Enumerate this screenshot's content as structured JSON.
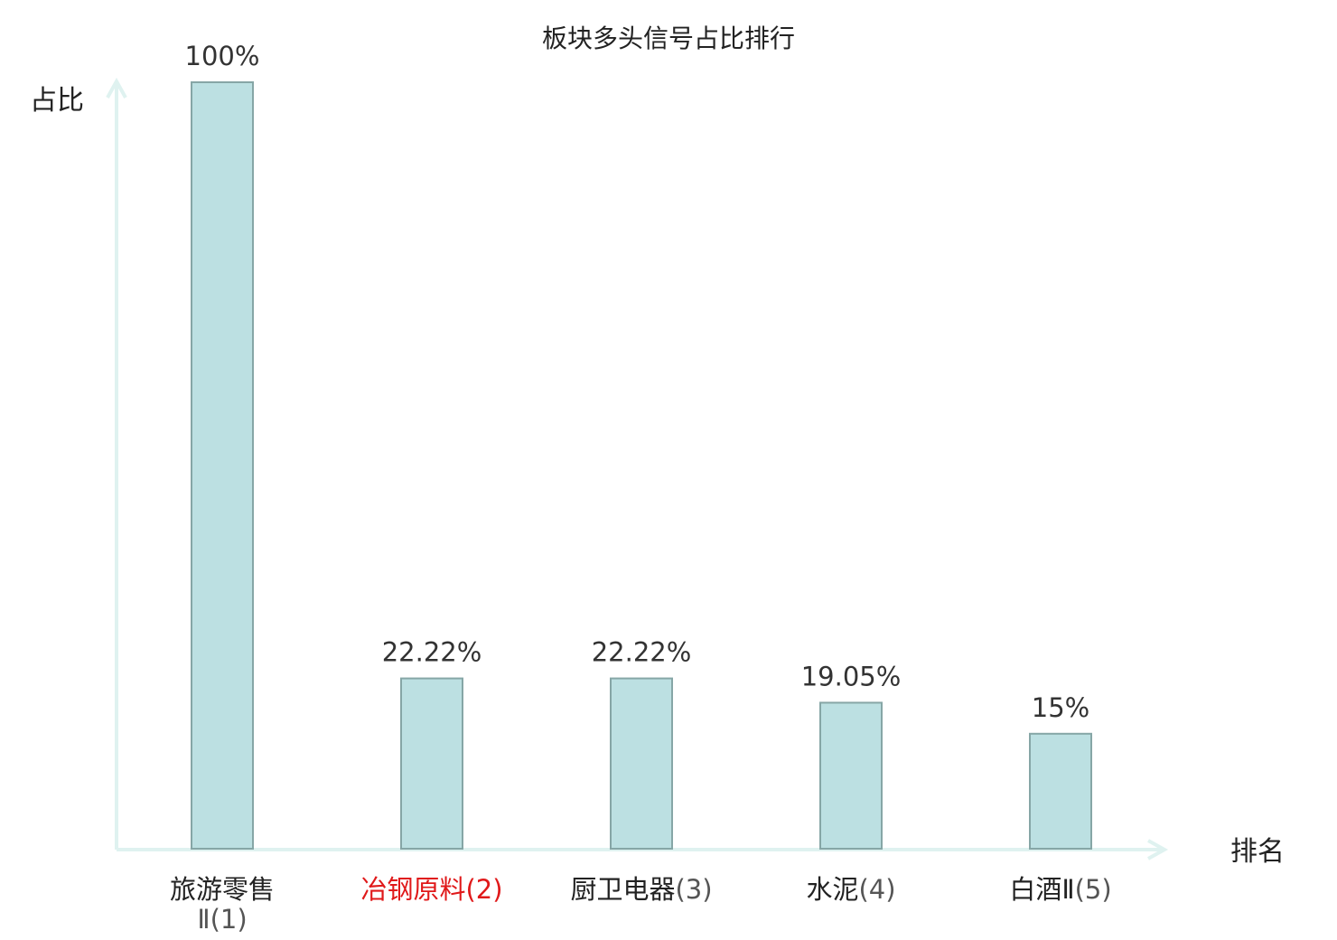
{
  "chart_data": {
    "type": "bar",
    "title": "板块多头信号占比排行",
    "xlabel": "排名",
    "ylabel": "占比",
    "ylim": [
      0,
      100
    ],
    "grid": false,
    "categories": [
      {
        "name": "旅游零售Ⅱ",
        "rank": "(1)",
        "highlight": false
      },
      {
        "name": "冶钢原料",
        "rank": "(2)",
        "highlight": true
      },
      {
        "name": "厨卫电器",
        "rank": "(3)",
        "highlight": false
      },
      {
        "name": "水泥",
        "rank": "(4)",
        "highlight": false
      },
      {
        "name": "白酒Ⅱ",
        "rank": "(5)",
        "highlight": false
      }
    ],
    "values": [
      100,
      22.22,
      22.22,
      19.05,
      15
    ],
    "value_labels": [
      "100%",
      "22.22%",
      "22.22%",
      "19.05%",
      "15%"
    ]
  },
  "colors": {
    "bar_fill": "#bce0e2",
    "bar_stroke": "#86a6a6",
    "axis": "#dff2f0",
    "highlight_text": "#e0191a"
  }
}
